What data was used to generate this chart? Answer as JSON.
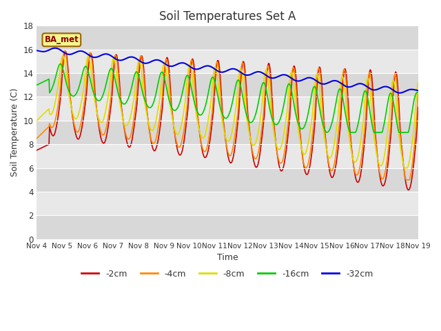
{
  "title": "Soil Temperatures Set A",
  "xlabel": "Time",
  "ylabel": "Soil Temperature (C)",
  "ylim": [
    0,
    18
  ],
  "yticks": [
    0,
    2,
    4,
    6,
    8,
    10,
    12,
    14,
    16,
    18
  ],
  "x_labels": [
    "Nov 4",
    "Nov 5",
    "Nov 6",
    "Nov 7",
    "Nov 8",
    "Nov 9",
    "Nov 10",
    "Nov 11",
    "Nov 12",
    "Nov 13",
    "Nov 14",
    "Nov 15",
    "Nov 16",
    "Nov 17",
    "Nov 18",
    "Nov 19"
  ],
  "legend_label": "BA_met",
  "series_labels": [
    "-2cm",
    "-4cm",
    "-8cm",
    "-16cm",
    "-32cm"
  ],
  "series_colors": [
    "#cc0000",
    "#ff8800",
    "#dddd00",
    "#00cc00",
    "#0000dd"
  ],
  "background_color": "#ffffff",
  "plot_bg_bands": [
    "#e8e8e8",
    "#d8d8d8"
  ],
  "n_points": 720,
  "figsize": [
    6.4,
    4.8
  ],
  "dpi": 100
}
